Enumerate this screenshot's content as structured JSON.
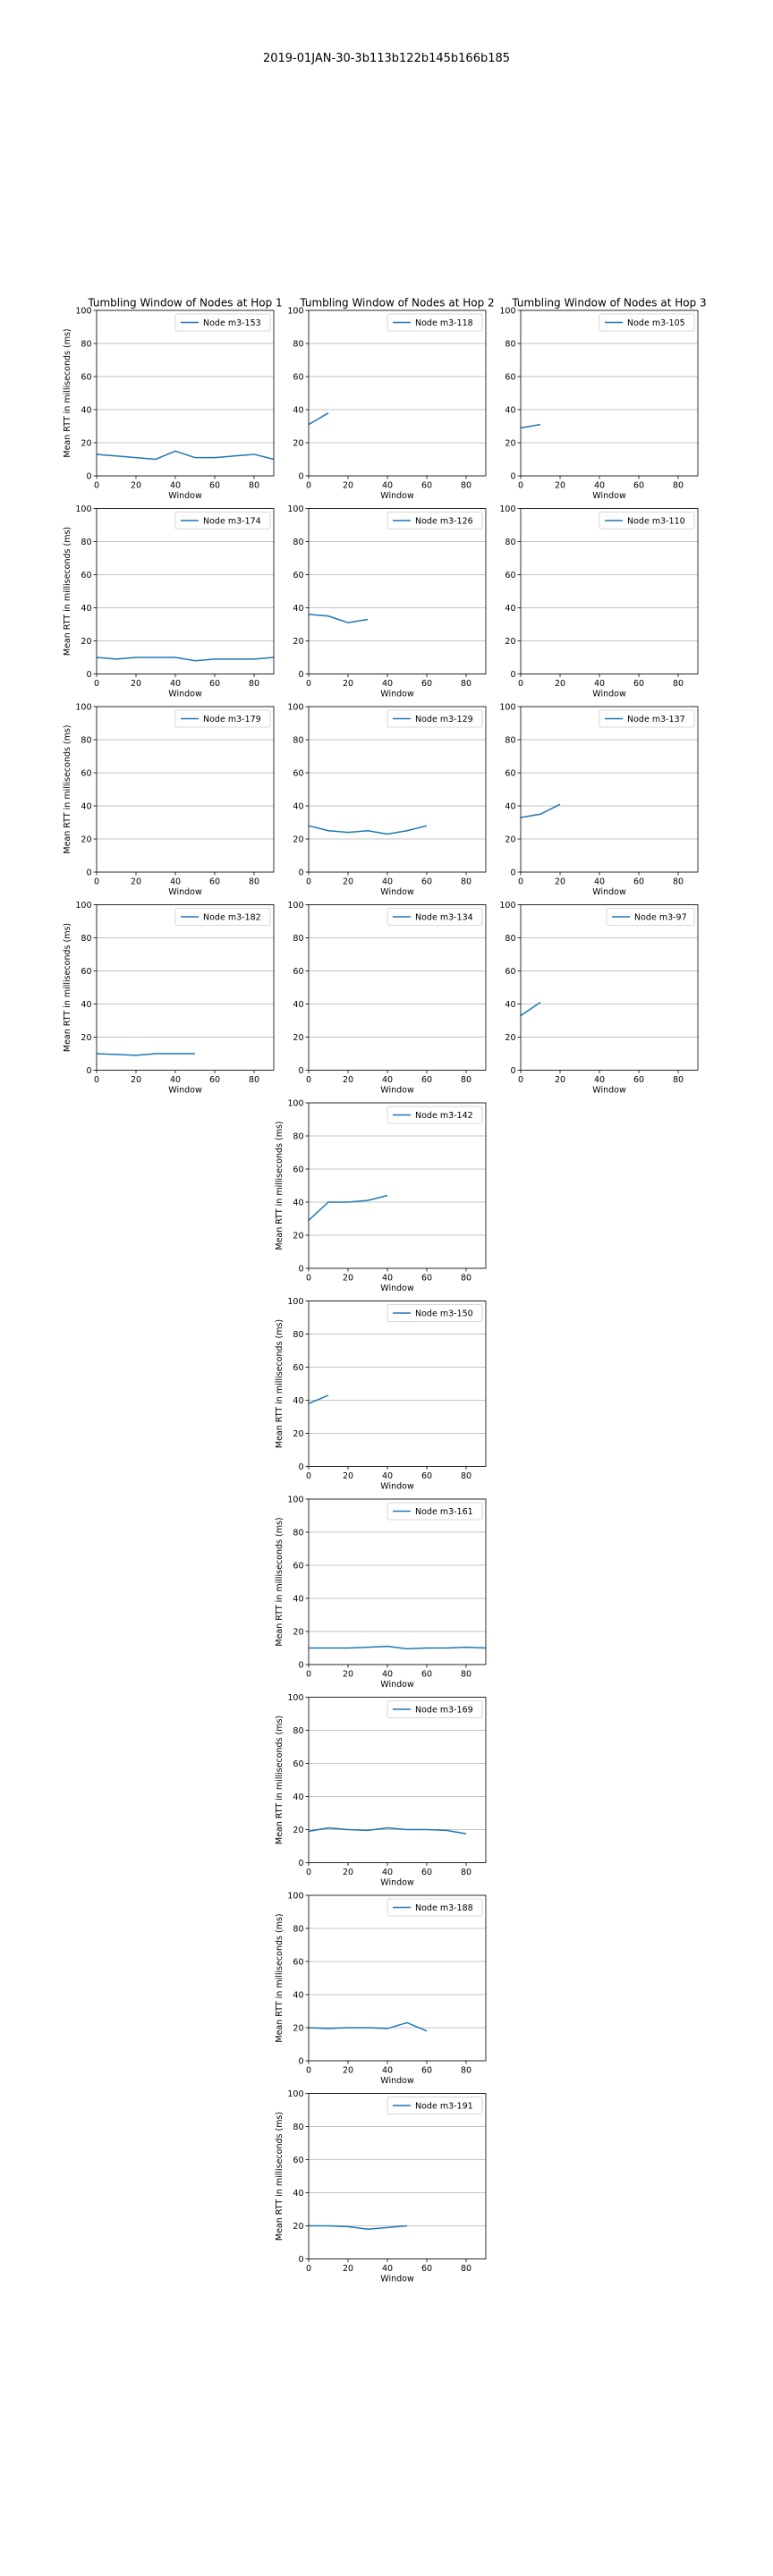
{
  "figure": {
    "suptitle": "2019-01JAN-30-3b113b122b145b166b185"
  },
  "chart_data": [
    {
      "type": "line",
      "hop": 1,
      "title": "Tumbling Window of Nodes at Hop 1",
      "xlabel": "Window",
      "ylabel": "Mean RTT in milliseconds (ms)",
      "xlim": [
        0,
        90
      ],
      "ylim": [
        0,
        100
      ],
      "xticks": [
        0,
        20,
        40,
        60,
        80
      ],
      "yticks": [
        0,
        20,
        40,
        60,
        80,
        100
      ],
      "grid": "y",
      "legend": "top-right",
      "series": [
        {
          "name": "Node m3-153",
          "x": [
            0,
            10,
            20,
            30,
            40,
            50,
            60,
            70,
            80,
            90
          ],
          "y": [
            13,
            12,
            11,
            10,
            15,
            11,
            11,
            12,
            13,
            10
          ]
        }
      ]
    },
    {
      "type": "line",
      "hop": 2,
      "title": "Tumbling Window of Nodes at Hop 2",
      "xlabel": "Window",
      "ylabel": "",
      "xlim": [
        0,
        90
      ],
      "ylim": [
        0,
        100
      ],
      "xticks": [
        0,
        20,
        40,
        60,
        80
      ],
      "yticks": [
        0,
        20,
        40,
        60,
        80,
        100
      ],
      "grid": "y",
      "legend": "top-right",
      "series": [
        {
          "name": "Node m3-118",
          "x": [
            0,
            10
          ],
          "y": [
            31,
            38
          ]
        }
      ]
    },
    {
      "type": "line",
      "hop": 3,
      "title": "Tumbling Window of Nodes at Hop 3",
      "xlabel": "Window",
      "ylabel": "",
      "xlim": [
        0,
        90
      ],
      "ylim": [
        0,
        100
      ],
      "xticks": [
        0,
        20,
        40,
        60,
        80
      ],
      "yticks": [
        0,
        20,
        40,
        60,
        80,
        100
      ],
      "grid": "y",
      "legend": "top-right",
      "series": [
        {
          "name": "Node m3-105",
          "x": [
            0,
            10
          ],
          "y": [
            29,
            31
          ]
        }
      ]
    },
    {
      "type": "line",
      "hop": 1,
      "title": "",
      "xlabel": "Window",
      "ylabel": "Mean RTT in milliseconds (ms)",
      "xlim": [
        0,
        90
      ],
      "ylim": [
        0,
        100
      ],
      "xticks": [
        0,
        20,
        40,
        60,
        80
      ],
      "yticks": [
        0,
        20,
        40,
        60,
        80,
        100
      ],
      "grid": "y",
      "legend": "top-right",
      "series": [
        {
          "name": "Node m3-174",
          "x": [
            0,
            10,
            20,
            30,
            40,
            50,
            60,
            70,
            80,
            90
          ],
          "y": [
            10,
            9,
            10,
            10,
            10,
            8,
            9,
            9,
            9,
            10
          ]
        }
      ]
    },
    {
      "type": "line",
      "hop": 2,
      "title": "",
      "xlabel": "Window",
      "ylabel": "",
      "xlim": [
        0,
        90
      ],
      "ylim": [
        0,
        100
      ],
      "xticks": [
        0,
        20,
        40,
        60,
        80
      ],
      "yticks": [
        0,
        20,
        40,
        60,
        80,
        100
      ],
      "grid": "y",
      "legend": "top-right",
      "series": [
        {
          "name": "Node m3-126",
          "x": [
            0,
            10,
            20,
            30
          ],
          "y": [
            36,
            35,
            31,
            33
          ]
        }
      ]
    },
    {
      "type": "line",
      "hop": 3,
      "title": "",
      "xlabel": "Window",
      "ylabel": "",
      "xlim": [
        0,
        90
      ],
      "ylim": [
        0,
        100
      ],
      "xticks": [
        0,
        20,
        40,
        60,
        80
      ],
      "yticks": [
        0,
        20,
        40,
        60,
        80,
        100
      ],
      "grid": "y",
      "legend": "top-right",
      "series": [
        {
          "name": "Node m3-110",
          "x": [],
          "y": []
        }
      ]
    },
    {
      "type": "line",
      "hop": 1,
      "title": "",
      "xlabel": "Window",
      "ylabel": "Mean RTT in milliseconds (ms)",
      "xlim": [
        0,
        90
      ],
      "ylim": [
        0,
        100
      ],
      "xticks": [
        0,
        20,
        40,
        60,
        80
      ],
      "yticks": [
        0,
        20,
        40,
        60,
        80,
        100
      ],
      "grid": "y",
      "legend": "top-right",
      "series": [
        {
          "name": "Node m3-179",
          "x": [],
          "y": []
        }
      ]
    },
    {
      "type": "line",
      "hop": 2,
      "title": "",
      "xlabel": "Window",
      "ylabel": "",
      "xlim": [
        0,
        90
      ],
      "ylim": [
        0,
        100
      ],
      "xticks": [
        0,
        20,
        40,
        60,
        80
      ],
      "yticks": [
        0,
        20,
        40,
        60,
        80,
        100
      ],
      "grid": "y",
      "legend": "top-right",
      "series": [
        {
          "name": "Node m3-129",
          "x": [
            0,
            10,
            20,
            30,
            40,
            50,
            60
          ],
          "y": [
            28,
            25,
            24,
            25,
            23,
            25,
            28
          ]
        }
      ]
    },
    {
      "type": "line",
      "hop": 3,
      "title": "",
      "xlabel": "Window",
      "ylabel": "",
      "xlim": [
        0,
        90
      ],
      "ylim": [
        0,
        100
      ],
      "xticks": [
        0,
        20,
        40,
        60,
        80
      ],
      "yticks": [
        0,
        20,
        40,
        60,
        80,
        100
      ],
      "grid": "y",
      "legend": "top-right",
      "series": [
        {
          "name": "Node m3-137",
          "x": [
            0,
            10,
            20
          ],
          "y": [
            33,
            35,
            41
          ]
        }
      ]
    },
    {
      "type": "line",
      "hop": 1,
      "title": "",
      "xlabel": "Window",
      "ylabel": "Mean RTT in milliseconds (ms)",
      "xlim": [
        0,
        90
      ],
      "ylim": [
        0,
        100
      ],
      "xticks": [
        0,
        20,
        40,
        60,
        80
      ],
      "yticks": [
        0,
        20,
        40,
        60,
        80,
        100
      ],
      "grid": "y",
      "legend": "top-right",
      "series": [
        {
          "name": "Node m3-182",
          "x": [
            0,
            10,
            20,
            30,
            40,
            50
          ],
          "y": [
            10,
            9.5,
            9,
            10,
            10,
            10
          ]
        }
      ]
    },
    {
      "type": "line",
      "hop": 2,
      "title": "",
      "xlabel": "Window",
      "ylabel": "",
      "xlim": [
        0,
        90
      ],
      "ylim": [
        0,
        100
      ],
      "xticks": [
        0,
        20,
        40,
        60,
        80
      ],
      "yticks": [
        0,
        20,
        40,
        60,
        80,
        100
      ],
      "grid": "y",
      "legend": "top-right",
      "series": [
        {
          "name": "Node m3-134",
          "x": [],
          "y": []
        }
      ]
    },
    {
      "type": "line",
      "hop": 3,
      "title": "",
      "xlabel": "Window",
      "ylabel": "",
      "xlim": [
        0,
        90
      ],
      "ylim": [
        0,
        100
      ],
      "xticks": [
        0,
        20,
        40,
        60,
        80
      ],
      "yticks": [
        0,
        20,
        40,
        60,
        80,
        100
      ],
      "grid": "y",
      "legend": "top-right",
      "series": [
        {
          "name": "Node m3-97",
          "x": [
            0,
            10
          ],
          "y": [
            33,
            41
          ]
        }
      ]
    },
    {
      "type": "line",
      "hop": 2,
      "title": "",
      "xlabel": "Window",
      "ylabel": "Mean RTT in milliseconds (ms)",
      "xlim": [
        0,
        90
      ],
      "ylim": [
        0,
        100
      ],
      "xticks": [
        0,
        20,
        40,
        60,
        80
      ],
      "yticks": [
        0,
        20,
        40,
        60,
        80,
        100
      ],
      "grid": "y",
      "legend": "top-right",
      "series": [
        {
          "name": "Node m3-142",
          "x": [
            0,
            10,
            20,
            30,
            40
          ],
          "y": [
            29,
            40,
            40,
            41,
            44
          ]
        }
      ]
    },
    {
      "type": "line",
      "hop": 2,
      "title": "",
      "xlabel": "Window",
      "ylabel": "Mean RTT in milliseconds (ms)",
      "xlim": [
        0,
        90
      ],
      "ylim": [
        0,
        100
      ],
      "xticks": [
        0,
        20,
        40,
        60,
        80
      ],
      "yticks": [
        0,
        20,
        40,
        60,
        80,
        100
      ],
      "grid": "y",
      "legend": "top-right",
      "series": [
        {
          "name": "Node m3-150",
          "x": [
            0,
            10
          ],
          "y": [
            38,
            43
          ]
        }
      ]
    },
    {
      "type": "line",
      "hop": 2,
      "title": "",
      "xlabel": "Window",
      "ylabel": "Mean RTT in milliseconds (ms)",
      "xlim": [
        0,
        90
      ],
      "ylim": [
        0,
        100
      ],
      "xticks": [
        0,
        20,
        40,
        60,
        80
      ],
      "yticks": [
        0,
        20,
        40,
        60,
        80,
        100
      ],
      "grid": "y",
      "legend": "top-right",
      "series": [
        {
          "name": "Node m3-161",
          "x": [
            0,
            10,
            20,
            30,
            40,
            50,
            60,
            70,
            80,
            90
          ],
          "y": [
            10,
            10,
            10,
            10.5,
            11,
            9.5,
            10,
            10,
            10.5,
            10
          ]
        }
      ]
    },
    {
      "type": "line",
      "hop": 2,
      "title": "",
      "xlabel": "Window",
      "ylabel": "Mean RTT in milliseconds (ms)",
      "xlim": [
        0,
        90
      ],
      "ylim": [
        0,
        100
      ],
      "xticks": [
        0,
        20,
        40,
        60,
        80
      ],
      "yticks": [
        0,
        20,
        40,
        60,
        80,
        100
      ],
      "grid": "y",
      "legend": "top-right",
      "series": [
        {
          "name": "Node m3-169",
          "x": [
            0,
            10,
            20,
            30,
            40,
            50,
            60,
            70,
            80
          ],
          "y": [
            19,
            21,
            20,
            19.5,
            21,
            20,
            20,
            19.5,
            17.5
          ]
        }
      ]
    },
    {
      "type": "line",
      "hop": 2,
      "title": "",
      "xlabel": "Window",
      "ylabel": "Mean RTT in milliseconds (ms)",
      "xlim": [
        0,
        90
      ],
      "ylim": [
        0,
        100
      ],
      "xticks": [
        0,
        20,
        40,
        60,
        80
      ],
      "yticks": [
        0,
        20,
        40,
        60,
        80,
        100
      ],
      "grid": "y",
      "legend": "top-right",
      "series": [
        {
          "name": "Node m3-188",
          "x": [
            0,
            10,
            20,
            30,
            40,
            50,
            60
          ],
          "y": [
            20,
            19.5,
            20,
            20,
            19.5,
            23,
            18
          ]
        }
      ]
    },
    {
      "type": "line",
      "hop": 2,
      "title": "",
      "xlabel": "Window",
      "ylabel": "Mean RTT in milliseconds (ms)",
      "xlim": [
        0,
        90
      ],
      "ylim": [
        0,
        100
      ],
      "xticks": [
        0,
        20,
        40,
        60,
        80
      ],
      "yticks": [
        0,
        20,
        40,
        60,
        80,
        100
      ],
      "grid": "y",
      "legend": "top-right",
      "series": [
        {
          "name": "Node m3-191",
          "x": [
            0,
            10,
            20,
            30,
            40,
            50
          ],
          "y": [
            20,
            20,
            19.5,
            18,
            19,
            20
          ]
        }
      ]
    }
  ]
}
